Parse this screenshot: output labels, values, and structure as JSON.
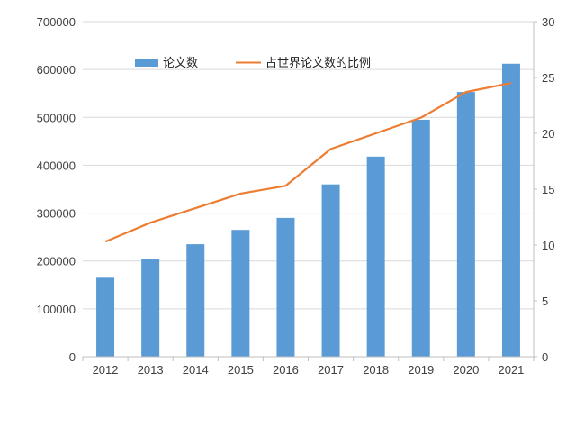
{
  "chart_data": {
    "type": "bar+line",
    "title": "",
    "categories": [
      "2012",
      "2013",
      "2014",
      "2015",
      "2016",
      "2017",
      "2018",
      "2019",
      "2020",
      "2021"
    ],
    "series": [
      {
        "name": "论文数",
        "type": "bar",
        "axis": "left",
        "color": "#5B9BD5",
        "values": [
          165000,
          205000,
          235000,
          265000,
          290000,
          360000,
          418000,
          495000,
          553000,
          612000
        ]
      },
      {
        "name": "占世界论文数的比例",
        "type": "line",
        "axis": "right",
        "color": "#ED7D31",
        "values": [
          10.3,
          12.0,
          13.3,
          14.6,
          15.3,
          18.6,
          20.0,
          21.4,
          23.7,
          24.5
        ]
      }
    ],
    "y_left": {
      "min": 0,
      "max": 700000,
      "ticks": [
        "0",
        "100000",
        "200000",
        "300000",
        "400000",
        "500000",
        "600000",
        "700000"
      ]
    },
    "y_right": {
      "min": 0,
      "max": 30,
      "ticks": [
        "0",
        "5",
        "10",
        "15",
        "20",
        "25",
        "30"
      ]
    },
    "grid": true,
    "legend_position": "top-left"
  }
}
